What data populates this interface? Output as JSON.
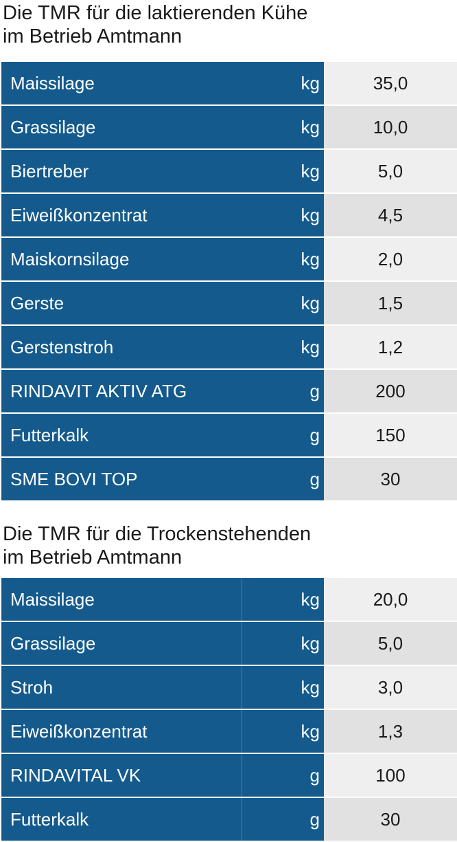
{
  "lactating": {
    "title": "Die TMR für die laktierenden Kühe\nim Betrieb Amtmann",
    "rows": [
      {
        "name": "Maissilage",
        "unit": "kg",
        "value": "35,0"
      },
      {
        "name": "Grassilage",
        "unit": "kg",
        "value": "10,0"
      },
      {
        "name": "Biertreber",
        "unit": "kg",
        "value": "5,0"
      },
      {
        "name": "Eiweißkonzentrat",
        "unit": "kg",
        "value": "4,5"
      },
      {
        "name": "Maiskornsilage",
        "unit": "kg",
        "value": "2,0"
      },
      {
        "name": "Gerste",
        "unit": "kg",
        "value": "1,5"
      },
      {
        "name": "Gerstenstroh",
        "unit": "kg",
        "value": "1,2"
      },
      {
        "name": "RINDAVIT AKTIV ATG",
        "unit": "g",
        "value": "200"
      },
      {
        "name": "Futterkalk",
        "unit": "g",
        "value": "150"
      },
      {
        "name": "SME BOVI TOP",
        "unit": "g",
        "value": "30"
      }
    ]
  },
  "dry": {
    "title": "Die TMR für die Trockenstehenden\nim Betrieb Amtmann",
    "rows": [
      {
        "name": "Maissilage",
        "unit": "kg",
        "value": "20,0"
      },
      {
        "name": "Grassilage",
        "unit": "kg",
        "value": "5,0"
      },
      {
        "name": "Stroh",
        "unit": "kg",
        "value": "3,0"
      },
      {
        "name": "Eiweißkonzentrat",
        "unit": "kg",
        "value": "1,3"
      },
      {
        "name": "RINDAVITAL VK",
        "unit": "g",
        "value": "100"
      },
      {
        "name": "Futterkalk",
        "unit": "g",
        "value": "30"
      }
    ]
  },
  "colors": {
    "label_background": "#145a8c",
    "value_background_light": "#efefef",
    "value_background_dark": "#e1e1e1"
  }
}
